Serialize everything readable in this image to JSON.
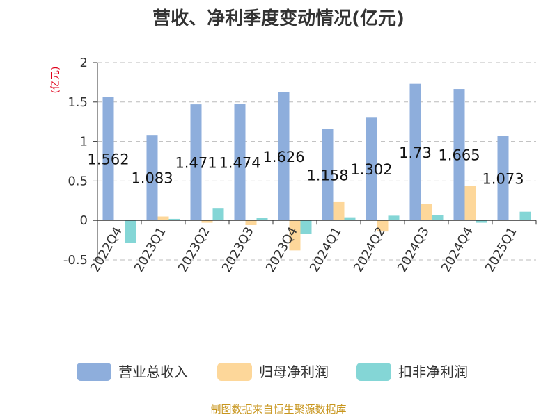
{
  "chart_data": {
    "type": "bar",
    "title": "营收、净利季度变动情况(亿元)",
    "unit_label": "(亿元)",
    "categories": [
      "2022Q4",
      "2023Q1",
      "2023Q2",
      "2023Q3",
      "2023Q4",
      "2024Q1",
      "2024Q2",
      "2024Q3",
      "2024Q4",
      "2025Q1"
    ],
    "series": [
      {
        "name": "营业总收入",
        "color": "#8eaedc",
        "values": [
          1.562,
          1.083,
          1.471,
          1.474,
          1.626,
          1.158,
          1.302,
          1.73,
          1.665,
          1.073
        ]
      },
      {
        "name": "归母净利润",
        "color": "#fdd79a",
        "values": [
          0.01,
          0.05,
          -0.03,
          -0.06,
          -0.38,
          0.24,
          -0.14,
          0.21,
          0.44,
          0.01
        ]
      },
      {
        "name": "扣非净利润",
        "color": "#84d6d6",
        "values": [
          -0.28,
          0.02,
          0.15,
          0.03,
          -0.17,
          0.04,
          0.06,
          0.07,
          -0.03,
          0.11
        ]
      }
    ],
    "data_labels": [
      "1.562",
      "1.083",
      "1.471",
      "1.474",
      "1.626",
      "1.158",
      "1.302",
      "1.73",
      "1.665",
      "1.073"
    ],
    "yticks": [
      "2",
      "1.5",
      "1",
      "0.5",
      "0",
      "-0.5"
    ],
    "ylim": [
      -0.5,
      2
    ],
    "grid": true,
    "legend_position": "bottom"
  },
  "footer": "制图数据来自恒生聚源数据库",
  "colors": {
    "unit_label": "#e0001b",
    "footer": "#c8961e",
    "grid": "#bbbbbb",
    "axis": "#333333"
  }
}
